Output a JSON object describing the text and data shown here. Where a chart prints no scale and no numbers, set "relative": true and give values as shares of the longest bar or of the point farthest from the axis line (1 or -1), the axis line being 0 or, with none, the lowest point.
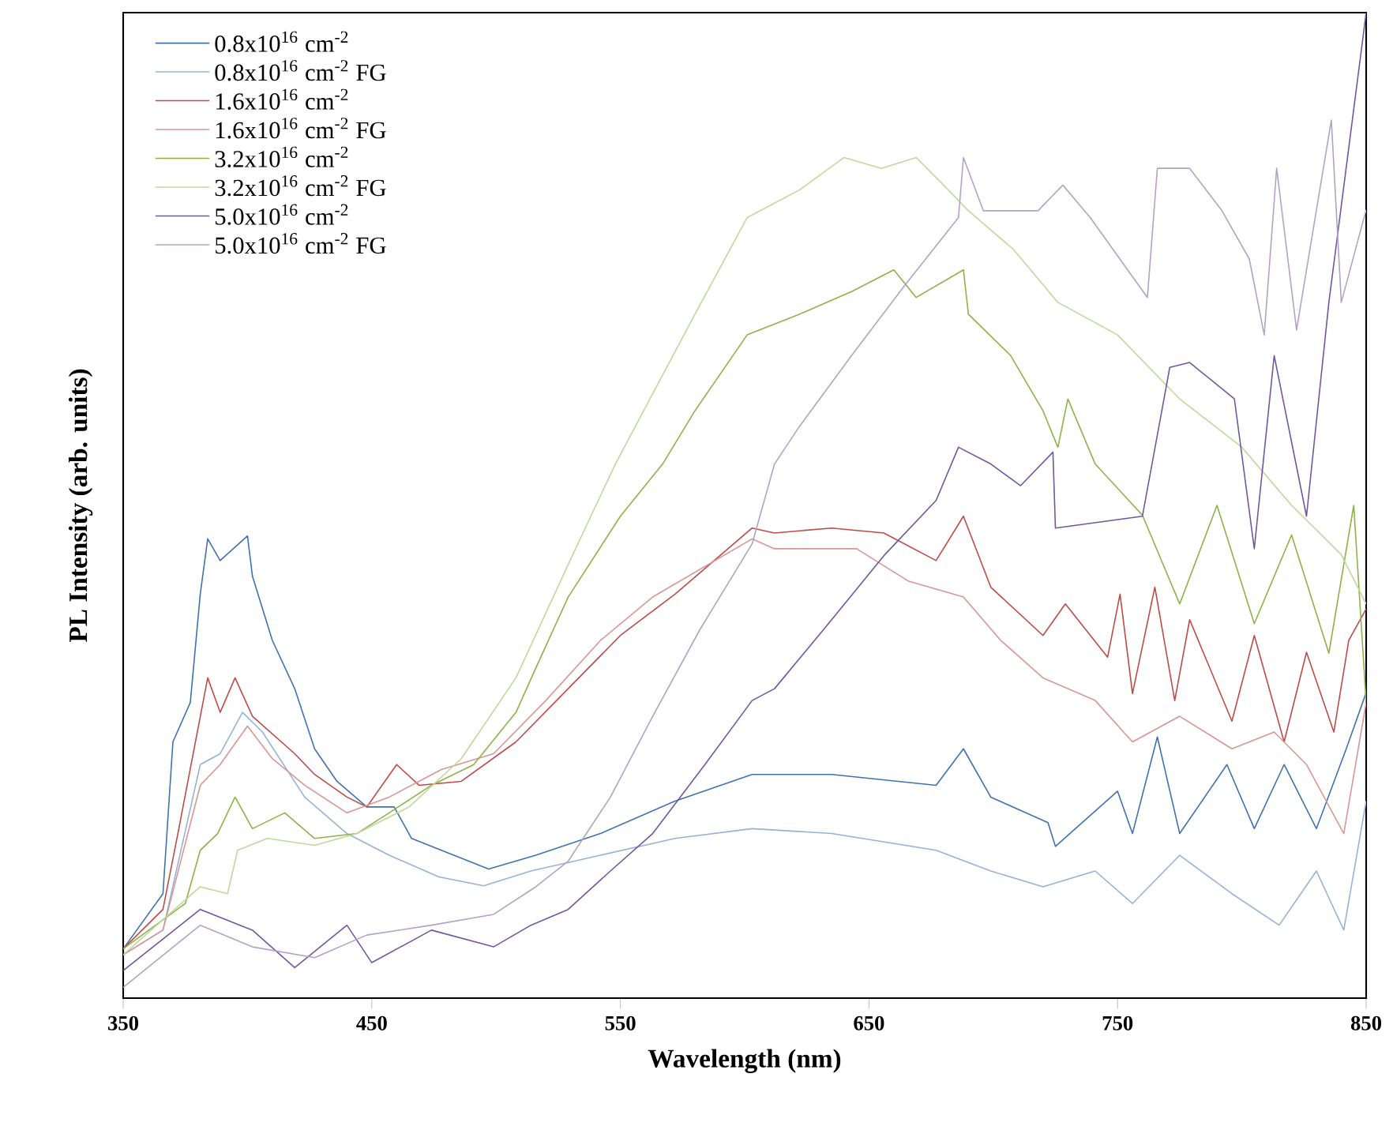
{
  "chart_data": {
    "type": "line",
    "xlabel": "Wavelength (nm)",
    "ylabel": "PL Intensity (arb. units)",
    "relative": true,
    "xlim": [
      350,
      850
    ],
    "xticks": [
      350,
      450,
      550,
      650,
      750,
      850
    ],
    "tick_labels": "x",
    "legend": "top left",
    "marker": "none",
    "line_style": "solid",
    "series": [
      {
        "name": "0.8x10$^{16}$ cm$^{-2}$",
        "color": "#3f72b0",
        "x": [
          350,
          366,
          370,
          377,
          381,
          384,
          389,
          400,
          402,
          410,
          419,
          427,
          436,
          448,
          459,
          466,
          483,
          497,
          516,
          542,
          572,
          603,
          635,
          677,
          688,
          699,
          722,
          725,
          750,
          756,
          766,
          775,
          794,
          805,
          817,
          830,
          842,
          850
        ],
        "values": [
          0.05,
          0.106,
          0.26,
          0.3,
          0.41,
          0.466,
          0.444,
          0.469,
          0.428,
          0.363,
          0.314,
          0.253,
          0.22,
          0.194,
          0.194,
          0.162,
          0.145,
          0.131,
          0.145,
          0.167,
          0.2,
          0.227,
          0.227,
          0.216,
          0.253,
          0.204,
          0.178,
          0.154,
          0.21,
          0.167,
          0.265,
          0.167,
          0.237,
          0.172,
          0.237,
          0.172,
          0.253,
          0.31
        ]
      },
      {
        "name": "0.8x10$^{16}$ cm$^{-2}$ FG",
        "color": "#95b3d7",
        "x": [
          350,
          366,
          381,
          389,
          398,
          406,
          423,
          440,
          457,
          477,
          495,
          514,
          542,
          572,
          603,
          635,
          677,
          699,
          720,
          741,
          756,
          775,
          796,
          815,
          830,
          841,
          850
        ],
        "values": [
          0.044,
          0.069,
          0.237,
          0.248,
          0.29,
          0.27,
          0.204,
          0.167,
          0.145,
          0.123,
          0.114,
          0.129,
          0.145,
          0.162,
          0.172,
          0.167,
          0.15,
          0.129,
          0.113,
          0.129,
          0.096,
          0.145,
          0.106,
          0.074,
          0.129,
          0.069,
          0.2
        ]
      },
      {
        "name": "1.6x10$^{16}$ cm$^{-2}$",
        "color": "#be4b48",
        "x": [
          350,
          366,
          372,
          384,
          389,
          395,
          402,
          419,
          427,
          440,
          448,
          460,
          469,
          486,
          508,
          529,
          550,
          572,
          603,
          612,
          635,
          656,
          677,
          688,
          699,
          720,
          729,
          746,
          751,
          756,
          765,
          773,
          779,
          796,
          805,
          817,
          826,
          837,
          843,
          850
        ],
        "values": [
          0.05,
          0.09,
          0.167,
          0.325,
          0.29,
          0.325,
          0.286,
          0.248,
          0.227,
          0.204,
          0.194,
          0.237,
          0.216,
          0.22,
          0.26,
          0.314,
          0.368,
          0.41,
          0.477,
          0.472,
          0.477,
          0.472,
          0.444,
          0.489,
          0.417,
          0.368,
          0.4,
          0.346,
          0.41,
          0.309,
          0.417,
          0.302,
          0.384,
          0.281,
          0.368,
          0.26,
          0.351,
          0.27,
          0.363,
          0.395
        ]
      },
      {
        "name": "1.6x10$^{16}$ cm$^{-2}$ FG",
        "color": "#d99694",
        "x": [
          350,
          366,
          381,
          389,
          400,
          410,
          423,
          440,
          457,
          478,
          499,
          520,
          542,
          563,
          603,
          612,
          645,
          666,
          688,
          703,
          720,
          741,
          756,
          775,
          796,
          813,
          826,
          841,
          850
        ],
        "values": [
          0.044,
          0.069,
          0.216,
          0.237,
          0.276,
          0.243,
          0.216,
          0.188,
          0.204,
          0.232,
          0.248,
          0.302,
          0.363,
          0.407,
          0.466,
          0.456,
          0.456,
          0.423,
          0.407,
          0.363,
          0.325,
          0.302,
          0.26,
          0.286,
          0.253,
          0.27,
          0.237,
          0.167,
          0.3
        ]
      },
      {
        "name": "3.2x10$^{16}$ cm$^{-2}$",
        "color": "#8db348",
        "x": [
          350,
          375,
          381,
          388,
          395,
          402,
          415,
          427,
          444,
          457,
          474,
          491,
          508,
          516,
          529,
          550,
          567,
          580,
          601,
          622,
          643,
          660,
          669,
          688,
          690,
          707,
          720,
          726,
          730,
          741,
          760,
          775,
          790,
          805,
          820,
          835,
          845,
          850
        ],
        "values": [
          0.05,
          0.096,
          0.15,
          0.167,
          0.204,
          0.172,
          0.188,
          0.162,
          0.167,
          0.188,
          0.216,
          0.237,
          0.29,
          0.335,
          0.407,
          0.489,
          0.542,
          0.596,
          0.673,
          0.694,
          0.717,
          0.739,
          0.711,
          0.739,
          0.694,
          0.652,
          0.596,
          0.559,
          0.608,
          0.542,
          0.49,
          0.4,
          0.5,
          0.38,
          0.47,
          0.35,
          0.5,
          0.3
        ]
      },
      {
        "name": "3.2x10$^{16}$ cm$^{-2}$ FG",
        "color": "#c3d69b",
        "x": [
          350,
          381,
          392,
          396,
          408,
          427,
          444,
          465,
          486,
          508,
          529,
          548,
          580,
          601,
          622,
          640,
          655,
          669,
          680,
          690,
          708,
          726,
          750,
          775,
          800,
          820,
          840,
          850
        ],
        "values": [
          0.044,
          0.113,
          0.106,
          0.15,
          0.162,
          0.155,
          0.167,
          0.194,
          0.243,
          0.325,
          0.44,
          0.542,
          0.694,
          0.792,
          0.82,
          0.853,
          0.842,
          0.853,
          0.825,
          0.799,
          0.76,
          0.706,
          0.673,
          0.608,
          0.559,
          0.5,
          0.45,
          0.4
        ]
      },
      {
        "name": "5.0x10$^{16}$ cm$^{-2}$",
        "color": "#7058a0",
        "x": [
          350,
          381,
          402,
          419,
          440,
          450,
          474,
          499,
          514,
          529,
          546,
          563,
          584,
          603,
          612,
          635,
          656,
          677,
          686,
          699,
          711,
          724,
          725,
          760,
          771,
          779,
          797,
          805,
          813,
          826,
          835,
          850
        ],
        "values": [
          0.028,
          0.09,
          0.069,
          0.031,
          0.074,
          0.036,
          0.069,
          0.052,
          0.074,
          0.09,
          0.129,
          0.167,
          0.237,
          0.302,
          0.314,
          0.384,
          0.449,
          0.505,
          0.559,
          0.542,
          0.52,
          0.554,
          0.477,
          0.489,
          0.64,
          0.645,
          0.608,
          0.456,
          0.652,
          0.489,
          0.706,
          1.0
        ]
      },
      {
        "name": "5.0x10$^{16}$ cm$^{-2}$ FG",
        "color": "#b3a2c7",
        "x": [
          350,
          381,
          402,
          427,
          448,
          474,
          499,
          516,
          529,
          546,
          563,
          582,
          603,
          612,
          622,
          643,
          664,
          686,
          688,
          696,
          718,
          728,
          739,
          762,
          766,
          779,
          792,
          803,
          809,
          814,
          822,
          836,
          840,
          850
        ],
        "values": [
          0.011,
          0.074,
          0.052,
          0.041,
          0.064,
          0.074,
          0.085,
          0.113,
          0.139,
          0.204,
          0.286,
          0.374,
          0.461,
          0.542,
          0.58,
          0.652,
          0.722,
          0.792,
          0.853,
          0.799,
          0.799,
          0.825,
          0.792,
          0.711,
          0.842,
          0.842,
          0.799,
          0.75,
          0.673,
          0.842,
          0.678,
          0.891,
          0.706,
          0.8
        ]
      }
    ]
  }
}
